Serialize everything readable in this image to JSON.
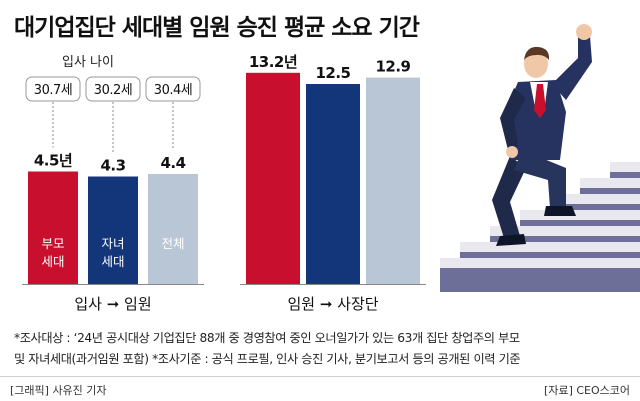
{
  "title": "대기업집단 세대별 임원 승진 평균 소요 기간",
  "colors": {
    "red": "#c8102e",
    "navy": "#13357a",
    "light": "#b9c6d6",
    "stair": "#e8e8ee",
    "stair_side": "#6e6f99",
    "suit": "#1f2a4a",
    "tie": "#c8102e"
  },
  "chart_data": [
    {
      "type": "bar",
      "categories": [
        "부모\n세대",
        "자녀\n세대",
        "전체"
      ],
      "values": [
        4.5,
        4.3,
        4.4
      ],
      "value_labels": [
        "4.5년",
        "4.3",
        "4.4"
      ],
      "bar_colors": [
        "#c8102e",
        "#13357a",
        "#b9c6d6"
      ],
      "top_label": "입사 나이",
      "entry_ages": [
        "30.7세",
        "30.2세",
        "30.4세"
      ],
      "xlabel_from": "입사",
      "xlabel_to": "임원"
    },
    {
      "type": "bar",
      "categories": [
        "",
        "",
        ""
      ],
      "values": [
        13.2,
        12.5,
        12.9
      ],
      "value_labels": [
        "13.2년",
        "12.5",
        "12.9"
      ],
      "bar_colors": [
        "#c8102e",
        "#13357a",
        "#b9c6d6"
      ],
      "xlabel_from": "임원",
      "xlabel_to": "사장단"
    }
  ],
  "arrow_glyph": "➞",
  "notes": [
    "*조사대상 : ‘24년 공시대상 기업집단 88개 중 경영참여 중인 오너일가가 있는 63개 집단 창업주의 부모",
    "및 자녀세대(과거임원 포함) *조사기준 : 공식 프로필, 인사 승진 기사, 분기보고서 등의 공개된 이력 기준"
  ],
  "footer": {
    "credit": "[그래픽] 사유진 기자",
    "source": "[자료] CEO스코어"
  }
}
